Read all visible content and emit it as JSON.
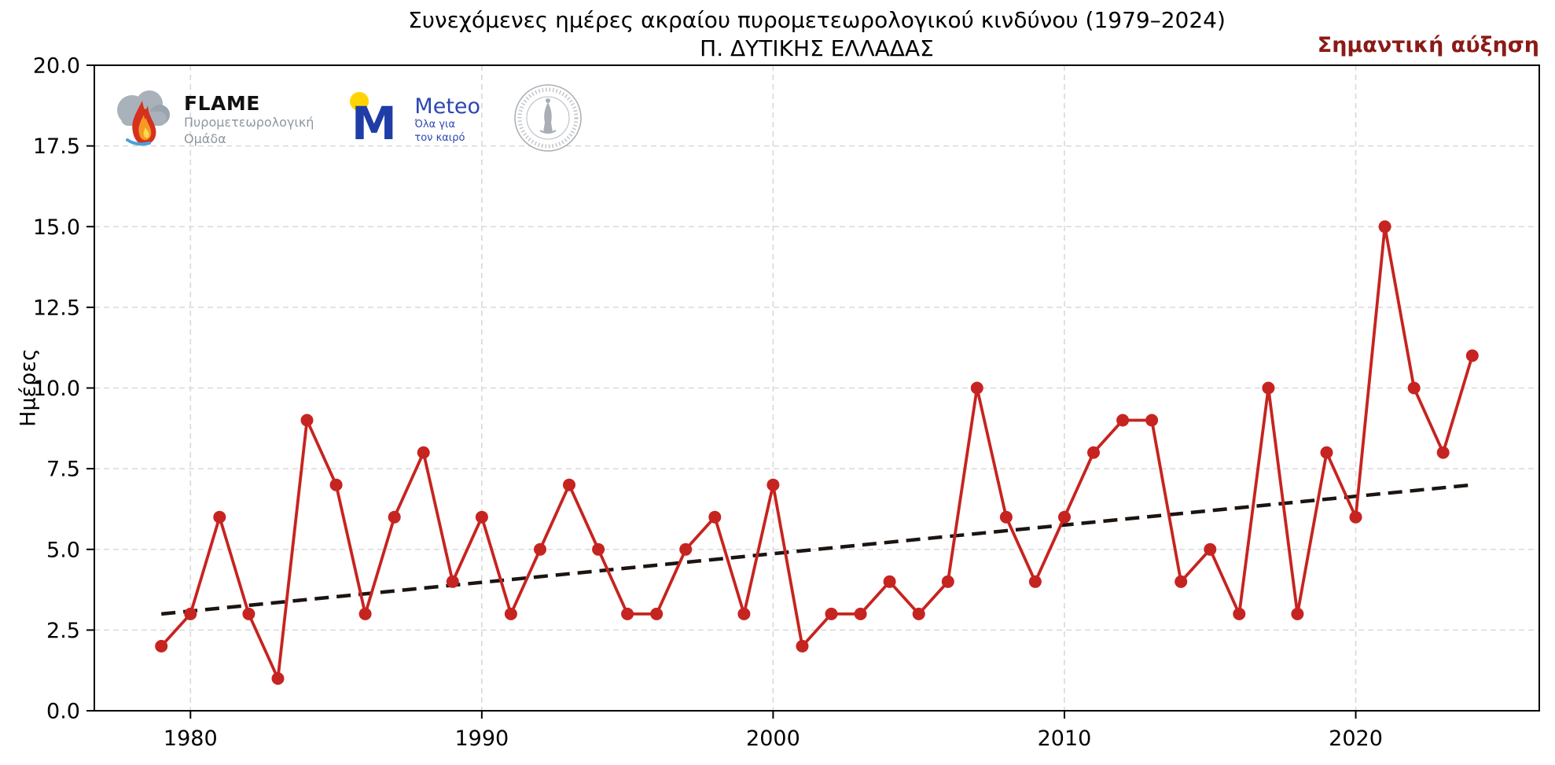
{
  "chart_data": {
    "type": "line",
    "title": "Συνεχόμενες ημέρες ακραίου πυρομετεωρολογικού κινδύνου (1979–2024)",
    "subtitle": "Π. ΔΥΤΙΚΗΣ ΕΛΛΑΔΑΣ",
    "annotation": "Σημαντική αύξηση",
    "ylabel": "Ημέρες",
    "x": [
      1979,
      1980,
      1981,
      1982,
      1983,
      1984,
      1985,
      1986,
      1987,
      1988,
      1989,
      1990,
      1991,
      1992,
      1993,
      1994,
      1995,
      1996,
      1997,
      1998,
      1999,
      2000,
      2001,
      2002,
      2003,
      2004,
      2005,
      2006,
      2007,
      2008,
      2009,
      2010,
      2011,
      2012,
      2013,
      2014,
      2015,
      2016,
      2017,
      2018,
      2019,
      2020,
      2021,
      2022,
      2023,
      2024
    ],
    "values": [
      2,
      3,
      6,
      3,
      1,
      9,
      7,
      3,
      6,
      8,
      4,
      6,
      3,
      5,
      7,
      5,
      3,
      3,
      5,
      6,
      3,
      7,
      2,
      3,
      3,
      4,
      3,
      4,
      10,
      6,
      4,
      6,
      8,
      9,
      9,
      4,
      5,
      3,
      10,
      3,
      8,
      6,
      15,
      10,
      8,
      11
    ],
    "trend": {
      "x": [
        1979,
        2024
      ],
      "y": [
        3.0,
        7.0
      ]
    },
    "xlim": [
      1976.7,
      2026.3
    ],
    "ylim": [
      0,
      20
    ],
    "xticks": [
      1980,
      1990,
      2000,
      2010,
      2020
    ],
    "xtick_labels": [
      "1980",
      "1990",
      "2000",
      "2010",
      "2020"
    ],
    "yticks": [
      0,
      2.5,
      5,
      7.5,
      10,
      12.5,
      15,
      17.5,
      20
    ],
    "ytick_labels": [
      "0.0",
      "2.5",
      "5.0",
      "7.5",
      "10.0",
      "12.5",
      "15.0",
      "17.5",
      "20.0"
    ],
    "grid": true,
    "legend_position": "none",
    "colors": {
      "series": "#c62420",
      "trend": "#1c1410",
      "grid": "#d9d9d9",
      "axis": "#000000",
      "annotation": "#8b1a17"
    }
  },
  "logos": {
    "flame": {
      "name": "FLAME",
      "sub1": "Πυρομετεωρολογική",
      "sub2": "Ομάδα"
    },
    "meteo": {
      "name": "Meteo",
      "tagline1": "Όλα για",
      "tagline2": "τον καιρό"
    }
  }
}
